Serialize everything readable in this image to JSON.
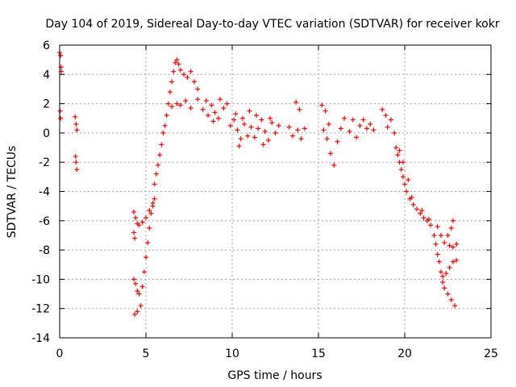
{
  "chart_data": {
    "type": "scatter",
    "title": "Day 104 of 2019, Sidereal Day-to-day VTEC variation (SDTVAR) for receiver kokr",
    "xlabel": "GPS time / hours",
    "ylabel": "SDTVAR / TECUs",
    "xlim": [
      0,
      25
    ],
    "ylim": [
      -14,
      6
    ],
    "xticks": [
      0,
      5,
      10,
      15,
      20,
      25
    ],
    "yticks": [
      -14,
      -12,
      -10,
      -8,
      -6,
      -4,
      -2,
      0,
      2,
      4,
      6
    ],
    "grid": true,
    "marker": "+",
    "color": "#ff0000",
    "series": [
      {
        "name": "SDTVAR",
        "points": [
          [
            0.0,
            5.5
          ],
          [
            0.05,
            5.3
          ],
          [
            0.08,
            4.5
          ],
          [
            0.1,
            4.2
          ],
          [
            0.03,
            1.5
          ],
          [
            0.05,
            1.0
          ],
          [
            0.9,
            1.1
          ],
          [
            0.95,
            0.6
          ],
          [
            1.0,
            0.2
          ],
          [
            0.92,
            -1.6
          ],
          [
            0.95,
            -2.0
          ],
          [
            1.0,
            -2.5
          ],
          [
            4.3,
            -5.4
          ],
          [
            4.4,
            -5.8
          ],
          [
            4.5,
            -6.2
          ],
          [
            4.3,
            -6.8
          ],
          [
            4.35,
            -7.2
          ],
          [
            4.3,
            -10.0
          ],
          [
            4.4,
            -10.3
          ],
          [
            4.5,
            -10.8
          ],
          [
            4.6,
            -11.0
          ],
          [
            4.35,
            -12.4
          ],
          [
            4.5,
            -12.2
          ],
          [
            4.7,
            -11.8
          ],
          [
            4.8,
            -10.5
          ],
          [
            4.9,
            -9.5
          ],
          [
            5.0,
            -8.5
          ],
          [
            5.1,
            -7.5
          ],
          [
            5.2,
            -6.5
          ],
          [
            5.3,
            -5.5
          ],
          [
            5.4,
            -5.0
          ],
          [
            5.5,
            -4.5
          ],
          [
            4.6,
            -6.3
          ],
          [
            4.8,
            -6.1
          ],
          [
            5.0,
            -5.8
          ],
          [
            5.2,
            -5.3
          ],
          [
            5.4,
            -4.8
          ],
          [
            5.5,
            -3.5
          ],
          [
            5.6,
            -2.8
          ],
          [
            5.7,
            -2.2
          ],
          [
            5.8,
            -1.5
          ],
          [
            5.9,
            -0.8
          ],
          [
            6.0,
            0.0
          ],
          [
            6.1,
            0.5
          ],
          [
            6.2,
            1.2
          ],
          [
            6.3,
            2.0
          ],
          [
            6.4,
            2.8
          ],
          [
            6.5,
            3.5
          ],
          [
            6.6,
            4.2
          ],
          [
            6.7,
            4.8
          ],
          [
            6.8,
            5.0
          ],
          [
            6.9,
            4.7
          ],
          [
            7.0,
            4.3
          ],
          [
            7.2,
            4.0
          ],
          [
            7.4,
            3.8
          ],
          [
            7.6,
            4.2
          ],
          [
            7.8,
            3.5
          ],
          [
            8.0,
            3.0
          ],
          [
            6.5,
            1.8
          ],
          [
            6.8,
            2.0
          ],
          [
            7.0,
            1.9
          ],
          [
            7.3,
            2.2
          ],
          [
            7.6,
            1.7
          ],
          [
            8.0,
            2.3
          ],
          [
            8.3,
            1.6
          ],
          [
            8.6,
            1.2
          ],
          [
            8.9,
            0.8
          ],
          [
            9.2,
            1.0
          ],
          [
            9.5,
            1.7
          ],
          [
            9.3,
            2.3
          ],
          [
            9.7,
            2.0
          ],
          [
            8.5,
            2.2
          ],
          [
            8.8,
            1.9
          ],
          [
            9.0,
            1.4
          ],
          [
            9.9,
            0.5
          ],
          [
            10.1,
            0.9
          ],
          [
            10.3,
            0.2
          ],
          [
            10.5,
            -0.4
          ],
          [
            10.7,
            0.6
          ],
          [
            10.9,
            -0.2
          ],
          [
            11.1,
            0.4
          ],
          [
            11.3,
            -0.3
          ],
          [
            11.5,
            0.3
          ],
          [
            11.7,
            0.9
          ],
          [
            11.9,
            0.1
          ],
          [
            12.1,
            -0.5
          ],
          [
            12.3,
            0.7
          ],
          [
            12.5,
            0.0
          ],
          [
            12.7,
            0.5
          ],
          [
            10.2,
            1.3
          ],
          [
            10.6,
            1.0
          ],
          [
            11.0,
            1.5
          ],
          [
            11.4,
            1.2
          ],
          [
            11.8,
            -0.8
          ],
          [
            12.2,
            1.0
          ],
          [
            10.4,
            -0.9
          ],
          [
            13.3,
            0.4
          ],
          [
            13.5,
            -0.2
          ],
          [
            13.7,
            2.1
          ],
          [
            13.9,
            1.6
          ],
          [
            13.8,
            0.2
          ],
          [
            14.0,
            -0.4
          ],
          [
            14.2,
            0.3
          ],
          [
            15.2,
            1.9
          ],
          [
            15.4,
            1.5
          ],
          [
            15.6,
            0.6
          ],
          [
            15.3,
            0.2
          ],
          [
            15.5,
            -0.4
          ],
          [
            15.7,
            -1.4
          ],
          [
            15.9,
            -2.2
          ],
          [
            16.1,
            -0.6
          ],
          [
            16.3,
            0.3
          ],
          [
            16.5,
            1.0
          ],
          [
            16.8,
            0.1
          ],
          [
            17.0,
            0.9
          ],
          [
            17.2,
            -0.3
          ],
          [
            17.4,
            0.5
          ],
          [
            17.6,
            0.9
          ],
          [
            17.8,
            0.3
          ],
          [
            18.0,
            0.6
          ],
          [
            18.2,
            0.2
          ],
          [
            18.7,
            1.6
          ],
          [
            18.9,
            1.2
          ],
          [
            19.0,
            0.4
          ],
          [
            19.2,
            0.9
          ],
          [
            19.4,
            0.0
          ],
          [
            19.5,
            -1.0
          ],
          [
            19.6,
            -1.5
          ],
          [
            19.7,
            -2.0
          ],
          [
            19.8,
            -2.5
          ],
          [
            19.9,
            -3.0
          ],
          [
            20.0,
            -3.5
          ],
          [
            20.1,
            -4.0
          ],
          [
            20.3,
            -4.5
          ],
          [
            20.5,
            -4.9
          ],
          [
            20.7,
            -5.2
          ],
          [
            20.9,
            -5.5
          ],
          [
            21.1,
            -5.8
          ],
          [
            21.3,
            -6.0
          ],
          [
            21.5,
            -6.3
          ],
          [
            21.7,
            -7.0
          ],
          [
            21.8,
            -7.6
          ],
          [
            21.9,
            -8.3
          ],
          [
            22.0,
            -8.8
          ],
          [
            22.1,
            -9.5
          ],
          [
            22.2,
            -10.2
          ],
          [
            22.3,
            -10.6
          ],
          [
            22.5,
            -11.0
          ],
          [
            22.7,
            -11.4
          ],
          [
            22.9,
            -11.8
          ],
          [
            21.9,
            -6.4
          ],
          [
            22.1,
            -7.0
          ],
          [
            22.3,
            -7.5
          ],
          [
            22.5,
            -7.0
          ],
          [
            22.7,
            -6.5
          ],
          [
            22.8,
            -6.0
          ],
          [
            22.6,
            -7.7
          ],
          [
            22.8,
            -7.8
          ],
          [
            23.0,
            -7.6
          ],
          [
            22.2,
            -9.8
          ],
          [
            22.4,
            -9.6
          ],
          [
            22.6,
            -9.2
          ],
          [
            22.8,
            -8.8
          ],
          [
            23.0,
            -8.7
          ],
          [
            19.7,
            -1.2
          ],
          [
            19.9,
            -2.0
          ],
          [
            20.2,
            -3.2
          ],
          [
            20.4,
            -4.4
          ],
          [
            21.0,
            -5.3
          ],
          [
            21.4,
            -5.9
          ]
        ]
      }
    ]
  }
}
